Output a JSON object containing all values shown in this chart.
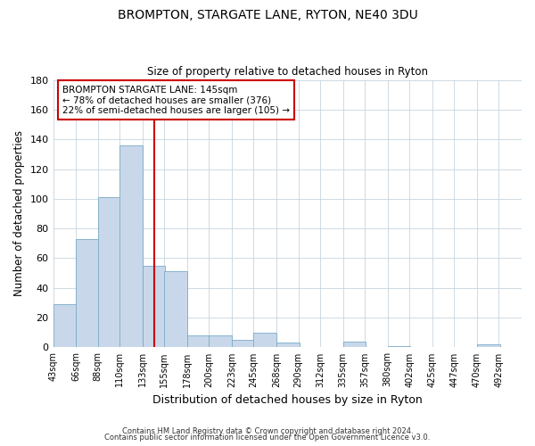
{
  "title": "BROMPTON, STARGATE LANE, RYTON, NE40 3DU",
  "subtitle": "Size of property relative to detached houses in Ryton",
  "xlabel": "Distribution of detached houses by size in Ryton",
  "ylabel": "Number of detached properties",
  "bar_color": "#c8d8ea",
  "bar_edge_color": "#7aaac8",
  "bin_labels": [
    "43sqm",
    "66sqm",
    "88sqm",
    "110sqm",
    "133sqm",
    "155sqm",
    "178sqm",
    "200sqm",
    "223sqm",
    "245sqm",
    "268sqm",
    "290sqm",
    "312sqm",
    "335sqm",
    "357sqm",
    "380sqm",
    "402sqm",
    "425sqm",
    "447sqm",
    "470sqm",
    "492sqm"
  ],
  "bin_edges": [
    43,
    66,
    88,
    110,
    133,
    155,
    178,
    200,
    223,
    245,
    268,
    290,
    312,
    335,
    357,
    380,
    402,
    425,
    447,
    470,
    492
  ],
  "counts": [
    29,
    73,
    101,
    136,
    55,
    51,
    8,
    8,
    5,
    10,
    3,
    0,
    0,
    4,
    0,
    1,
    0,
    0,
    0,
    2,
    0
  ],
  "vline_x": 145,
  "vline_color": "#cc0000",
  "annotation_line1": "BROMPTON STARGATE LANE: 145sqm",
  "annotation_line2": "← 78% of detached houses are smaller (376)",
  "annotation_line3": "22% of semi-detached houses are larger (105) →",
  "annotation_box_edge_color": "#cc0000",
  "ylim": [
    0,
    180
  ],
  "yticks": [
    0,
    20,
    40,
    60,
    80,
    100,
    120,
    140,
    160,
    180
  ],
  "footer1": "Contains HM Land Registry data © Crown copyright and database right 2024.",
  "footer2": "Contains public sector information licensed under the Open Government Licence v3.0."
}
